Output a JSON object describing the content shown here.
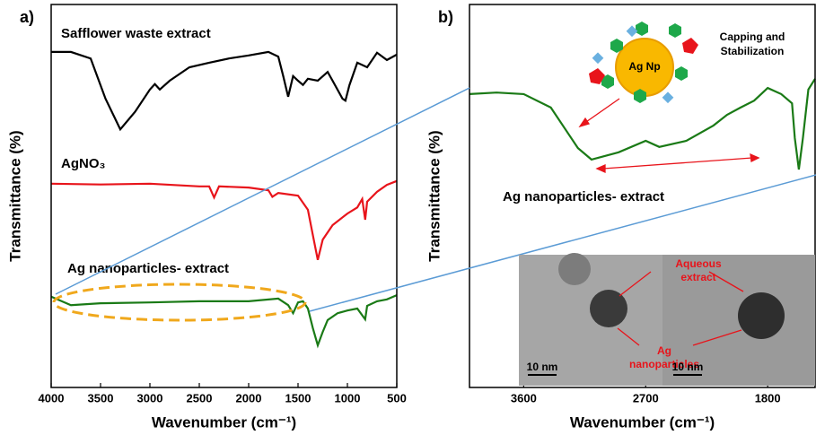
{
  "chart_data": [
    {
      "type": "line",
      "panel_label": "a)",
      "xlabel": "Wavenumber (cm⁻¹)",
      "ylabel": "Transmittance (%)",
      "xlim": [
        4000,
        500
      ],
      "xticks": [
        4000,
        3500,
        3000,
        2500,
        2000,
        1500,
        1000,
        500
      ],
      "ylim": [
        0,
        100
      ],
      "series": [
        {
          "name": "Safflower waste extract",
          "color": "#000000",
          "x": [
            4000,
            3800,
            3600,
            3450,
            3300,
            3150,
            3000,
            2950,
            2900,
            2800,
            2600,
            2400,
            2200,
            2000,
            1800,
            1700,
            1650,
            1600,
            1550,
            1500,
            1450,
            1400,
            1300,
            1200,
            1150,
            1050,
            1020,
            980,
            900,
            800,
            700,
            600,
            500
          ],
          "values": [
            87.6,
            87.6,
            85.9,
            75.4,
            67.4,
            72.0,
            77.8,
            79.2,
            77.8,
            80.1,
            83.6,
            84.8,
            85.9,
            86.7,
            87.6,
            86.4,
            81.3,
            75.9,
            81.3,
            80.1,
            79.0,
            80.6,
            80.1,
            82.4,
            80.1,
            75.4,
            74.9,
            78.9,
            84.8,
            83.6,
            87.4,
            85.5,
            86.9
          ]
        },
        {
          "name": "AgNO₃",
          "color": "#e8141b",
          "x": [
            4000,
            3500,
            3000,
            2500,
            2400,
            2350,
            2300,
            2000,
            1800,
            1760,
            1700,
            1500,
            1400,
            1350,
            1300,
            1250,
            1150,
            1000,
            900,
            850,
            820,
            800,
            700,
            600,
            500
          ],
          "values": [
            53.2,
            53.0,
            53.2,
            52.5,
            52.5,
            49.6,
            52.5,
            52.2,
            51.5,
            49.8,
            50.8,
            50.1,
            46.4,
            39.8,
            33.3,
            38.6,
            42.4,
            45.4,
            47.0,
            49.2,
            43.8,
            48.5,
            51.1,
            52.9,
            53.9
          ]
        },
        {
          "name": "Ag nanoparticles- extract",
          "color": "#1a7a16",
          "x": [
            4000,
            3800,
            3500,
            3000,
            2500,
            2000,
            1700,
            1600,
            1550,
            1500,
            1450,
            1400,
            1350,
            1300,
            1250,
            1200,
            1100,
            1000,
            900,
            820,
            800,
            700,
            600,
            500
          ],
          "values": [
            23.7,
            21.5,
            22.0,
            22.2,
            22.5,
            22.5,
            23.2,
            21.5,
            19.4,
            22.2,
            22.5,
            20.6,
            15.5,
            11.0,
            14.5,
            17.6,
            19.4,
            20.1,
            20.6,
            17.8,
            21.3,
            22.5,
            23.0,
            24.1
          ]
        }
      ]
    },
    {
      "type": "line",
      "panel_label": "b)",
      "xlabel": "Wavenumber (cm⁻¹)",
      "ylabel": "Transmittance (%)",
      "xlim": [
        4000,
        1450
      ],
      "xticks": [
        3600,
        2700,
        1800
      ],
      "ylim": [
        0,
        100
      ],
      "series": [
        {
          "name": "Ag nanoparticles- extract",
          "color": "#1a7a16",
          "x": [
            4000,
            3800,
            3600,
            3400,
            3200,
            3100,
            2900,
            2700,
            2600,
            2400,
            2200,
            2100,
            2000,
            1900,
            1800,
            1700,
            1620,
            1600,
            1570,
            1540,
            1500,
            1450
          ],
          "values": [
            76.6,
            77.0,
            76.6,
            73.1,
            62.5,
            59.5,
            61.4,
            64.4,
            62.8,
            64.4,
            68.4,
            71.2,
            73.1,
            74.9,
            78.2,
            76.6,
            74.2,
            65.1,
            56.9,
            65.1,
            77.8,
            80.6
          ]
        }
      ],
      "annotations": [
        "Ag Np",
        "Capping and",
        "Stabilization",
        "Aqueous",
        "extract",
        "Ag",
        "nanoparticles",
        "10 nm",
        "10 nm"
      ]
    }
  ]
}
